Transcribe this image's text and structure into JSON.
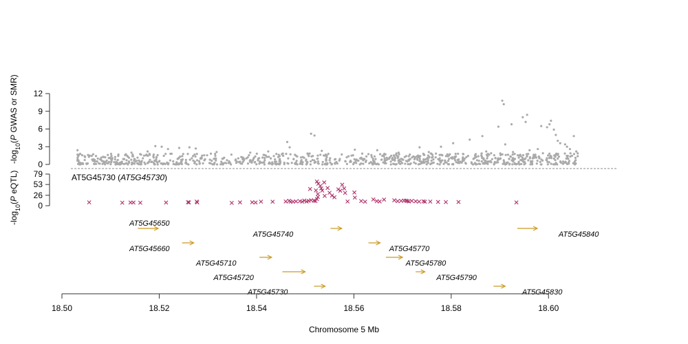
{
  "chart_data": {
    "type": "scatter",
    "xlabel": "Chromosome 5 Mb",
    "xlim": [
      18.5,
      18.61
    ],
    "x_ticks": [
      "18.50",
      "18.52",
      "18.54",
      "18.56",
      "18.58",
      "18.60"
    ],
    "x_tick_values": [
      18.5,
      18.52,
      18.54,
      18.56,
      18.58,
      18.6
    ],
    "colors": {
      "gwas": "#aaaaaa",
      "eqtl": "#b0306a",
      "gene": "#cc9922",
      "axis": "#333333"
    },
    "gwas_panel": {
      "ylabel_prefix": "-log",
      "ylabel_sub": "10",
      "ylabel_open": "(",
      "ylabel_p": "P",
      "ylabel_rest": " GWAS or SMR)",
      "ylim": [
        0,
        12
      ],
      "y_ticks": [
        "0",
        "3",
        "6",
        "9",
        "12"
      ],
      "y_tick_values": [
        0,
        3,
        6,
        9,
        12
      ],
      "points": [
        [
          18.5032,
          2.4
        ],
        [
          18.5101,
          1.8
        ],
        [
          18.5143,
          2.0
        ],
        [
          18.5176,
          2.2
        ],
        [
          18.5192,
          3.1
        ],
        [
          18.5205,
          3.0
        ],
        [
          18.5218,
          2.6
        ],
        [
          18.5241,
          2.8
        ],
        [
          18.5262,
          2.9
        ],
        [
          18.5275,
          2.7
        ],
        [
          18.5318,
          2.1
        ],
        [
          18.5387,
          2.0
        ],
        [
          18.5424,
          2.2
        ],
        [
          18.5463,
          3.8
        ],
        [
          18.5468,
          2.9
        ],
        [
          18.5512,
          5.2
        ],
        [
          18.5519,
          4.9
        ],
        [
          18.5534,
          2.3
        ],
        [
          18.5602,
          2.5
        ],
        [
          18.5648,
          2.4
        ],
        [
          18.5692,
          2.0
        ],
        [
          18.5735,
          2.9
        ],
        [
          18.5779,
          3.0
        ],
        [
          18.5804,
          3.6
        ],
        [
          18.5838,
          4.2
        ],
        [
          18.5864,
          4.8
        ],
        [
          18.5897,
          6.4
        ],
        [
          18.5905,
          10.8
        ],
        [
          18.5908,
          10.2
        ],
        [
          18.5924,
          6.8
        ],
        [
          18.5947,
          8.0
        ],
        [
          18.5956,
          8.4
        ],
        [
          18.5953,
          7.2
        ],
        [
          18.5985,
          6.5
        ],
        [
          18.5997,
          6.3
        ],
        [
          18.6005,
          7.4
        ],
        [
          18.6002,
          6.8
        ],
        [
          18.6011,
          5.9
        ],
        [
          18.6015,
          5.0
        ],
        [
          18.6019,
          4.0
        ],
        [
          18.6024,
          3.6
        ],
        [
          18.6034,
          3.4
        ],
        [
          18.6038,
          3.0
        ],
        [
          18.6044,
          2.6
        ],
        [
          18.6052,
          4.8
        ],
        [
          18.6057,
          2.2
        ],
        [
          18.606,
          1.4
        ],
        [
          18.5961,
          2.4
        ],
        [
          18.5978,
          2.6
        ],
        [
          18.5872,
          2.2
        ],
        [
          18.5911,
          3.4
        ],
        [
          18.5927,
          2.1
        ],
        [
          18.5882,
          1.9
        ],
        [
          18.5754,
          2.1
        ],
        [
          18.5809,
          1.8
        ]
      ]
    },
    "eqtl_panel": {
      "ylabel_prefix": "-log",
      "ylabel_sub": "10",
      "ylabel_open": "(",
      "ylabel_p": "P",
      "ylabel_rest": " eQTL)",
      "ylim": [
        0,
        79
      ],
      "y_ticks": [
        "0",
        "26",
        "53",
        "79"
      ],
      "y_tick_values": [
        0,
        26,
        53,
        79
      ],
      "probe_label": "AT5G45730",
      "probe_open": " (",
      "probe_gene": "AT5G45730",
      "probe_close": ")",
      "points": [
        [
          18.5056,
          8.4
        ],
        [
          18.5124,
          7.5
        ],
        [
          18.5141,
          8.0
        ],
        [
          18.5147,
          7.9
        ],
        [
          18.5161,
          7.5
        ],
        [
          18.5214,
          7.9
        ],
        [
          18.5259,
          8.7
        ],
        [
          18.5261,
          8.3
        ],
        [
          18.5277,
          10.3
        ],
        [
          18.5278,
          8.2
        ],
        [
          18.5349,
          7.1
        ],
        [
          18.5366,
          8.3
        ],
        [
          18.5391,
          8.5
        ],
        [
          18.5398,
          8.0
        ],
        [
          18.5409,
          10.2
        ],
        [
          18.5433,
          10.0
        ],
        [
          18.546,
          10.6
        ],
        [
          18.5467,
          12.2
        ],
        [
          18.547,
          10.0
        ],
        [
          18.5475,
          10.0
        ],
        [
          18.5481,
          10.8
        ],
        [
          18.5489,
          11.4
        ],
        [
          18.5494,
          10.0
        ],
        [
          18.5498,
          12.8
        ],
        [
          18.5503,
          10.5
        ],
        [
          18.5507,
          12.0
        ],
        [
          18.5512,
          13.8
        ],
        [
          18.5518,
          12.5
        ],
        [
          18.5521,
          11.7
        ],
        [
          18.5524,
          16.6
        ],
        [
          18.5526,
          21.8
        ],
        [
          18.5524,
          60.4
        ],
        [
          18.5527,
          54.8
        ],
        [
          18.5531,
          49.4
        ],
        [
          18.5535,
          37.8
        ],
        [
          18.5533,
          43.2
        ],
        [
          18.5539,
          58.1
        ],
        [
          18.5546,
          44.3
        ],
        [
          18.555,
          32.3
        ],
        [
          18.5555,
          25.4
        ],
        [
          18.556,
          21.0
        ],
        [
          18.5526,
          29.1
        ],
        [
          18.5522,
          38.2
        ],
        [
          18.551,
          41.7
        ],
        [
          18.554,
          24.5
        ],
        [
          18.5568,
          40.9
        ],
        [
          18.5572,
          37.4
        ],
        [
          18.5576,
          52.3
        ],
        [
          18.558,
          43.1
        ],
        [
          18.5582,
          32.0
        ],
        [
          18.5587,
          10.5
        ],
        [
          18.5601,
          33.0
        ],
        [
          18.5602,
          20.3
        ],
        [
          18.5615,
          11.7
        ],
        [
          18.5623,
          10.0
        ],
        [
          18.564,
          15.7
        ],
        [
          18.5647,
          11.3
        ],
        [
          18.5653,
          10.6
        ],
        [
          18.5662,
          15.3
        ],
        [
          18.5683,
          13.6
        ],
        [
          18.569,
          11.4
        ],
        [
          18.5697,
          12.0
        ],
        [
          18.5703,
          12.8
        ],
        [
          18.5707,
          12.7
        ],
        [
          18.571,
          11.7
        ],
        [
          18.5713,
          10.5
        ],
        [
          18.5719,
          12.0
        ],
        [
          18.5727,
          11.0
        ],
        [
          18.5734,
          10.2
        ],
        [
          18.5743,
          10.9
        ],
        [
          18.5746,
          10.0
        ],
        [
          18.5757,
          10.3
        ],
        [
          18.5773,
          9.4
        ],
        [
          18.5789,
          9.0
        ],
        [
          18.5815,
          9.3
        ],
        [
          18.5934,
          8.2
        ]
      ]
    },
    "genes": [
      {
        "name": "AT5G45650",
        "start": 18.5156,
        "end": 18.5198,
        "label_x": 18.518,
        "row": 0,
        "label_side": "above"
      },
      {
        "name": "AT5G45660",
        "start": 18.5247,
        "end": 18.5271,
        "label_x": 18.518,
        "row": 1,
        "label_side": "left"
      },
      {
        "name": "AT5G45710",
        "start": 18.5406,
        "end": 18.5431,
        "label_x": 18.5317,
        "row": 2,
        "label_side": "left"
      },
      {
        "name": "AT5G45720",
        "start": 18.5453,
        "end": 18.55,
        "label_x": 18.5353,
        "row": 3,
        "label_side": "left"
      },
      {
        "name": "AT5G45730",
        "start": 18.5518,
        "end": 18.5541,
        "label_x": 18.5423,
        "row": 4,
        "label_side": "left"
      },
      {
        "name": "AT5G45740",
        "start": 18.5552,
        "end": 18.5575,
        "label_x": 18.5434,
        "row": 0,
        "label_side": "left"
      },
      {
        "name": "AT5G45770",
        "start": 18.563,
        "end": 18.5654,
        "label_x": 18.5714,
        "row": 1,
        "label_side": "right"
      },
      {
        "name": "AT5G45780",
        "start": 18.5666,
        "end": 18.57,
        "label_x": 18.5748,
        "row": 2,
        "label_side": "right"
      },
      {
        "name": "AT5G45790",
        "start": 18.5727,
        "end": 18.5746,
        "label_x": 18.5811,
        "row": 3,
        "label_side": "right"
      },
      {
        "name": "AT5G45830",
        "start": 18.5887,
        "end": 18.5911,
        "label_x": 18.5987,
        "row": 4,
        "label_side": "right"
      },
      {
        "name": "AT5G45840",
        "start": 18.5936,
        "end": 18.5977,
        "label_x": 18.6062,
        "row": 0,
        "label_side": "right"
      }
    ]
  }
}
